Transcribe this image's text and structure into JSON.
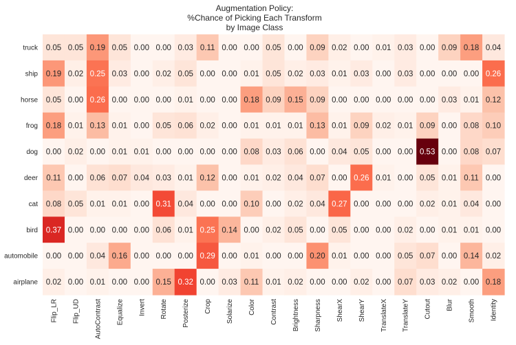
{
  "chart_data": {
    "type": "heatmap",
    "title": [
      "Augmentation Policy:",
      "%Chance of Picking Each Transform",
      "by Image Class"
    ],
    "rows": [
      "truck",
      "ship",
      "horse",
      "frog",
      "dog",
      "deer",
      "cat",
      "bird",
      "automobile",
      "airplane"
    ],
    "columns": [
      "Flip_LR",
      "Flip_UD",
      "AutoContrast",
      "Equalize",
      "Invert",
      "Rotate",
      "Posterize",
      "Crop",
      "Solarize",
      "Color",
      "Contrast",
      "Brightness",
      "Sharpness",
      "ShearX",
      "ShearY",
      "TranslateX",
      "TranslateY",
      "Cutout",
      "Blur",
      "Smooth",
      "Identity"
    ],
    "values": [
      [
        0.05,
        0.05,
        0.19,
        0.05,
        0.0,
        0.0,
        0.03,
        0.11,
        0.0,
        0.0,
        0.05,
        0.0,
        0.09,
        0.02,
        0.0,
        0.01,
        0.03,
        0.0,
        0.09,
        0.18,
        0.04
      ],
      [
        0.19,
        0.02,
        0.25,
        0.03,
        0.0,
        0.02,
        0.05,
        0.0,
        0.0,
        0.01,
        0.05,
        0.02,
        0.03,
        0.01,
        0.03,
        0.0,
        0.03,
        0.0,
        0.0,
        0.0,
        0.26
      ],
      [
        0.05,
        0.0,
        0.26,
        0.0,
        0.0,
        0.0,
        0.01,
        0.0,
        0.0,
        0.18,
        0.09,
        0.15,
        0.09,
        0.0,
        0.0,
        0.0,
        0.0,
        0.0,
        0.03,
        0.01,
        0.12
      ],
      [
        0.18,
        0.01,
        0.13,
        0.01,
        0.0,
        0.05,
        0.06,
        0.02,
        0.0,
        0.01,
        0.01,
        0.01,
        0.13,
        0.01,
        0.09,
        0.02,
        0.01,
        0.09,
        0.0,
        0.08,
        0.1
      ],
      [
        0.0,
        0.02,
        0.0,
        0.01,
        0.01,
        0.0,
        0.0,
        0.0,
        0.0,
        0.08,
        0.03,
        0.06,
        0.0,
        0.04,
        0.05,
        0.0,
        0.0,
        0.53,
        0.0,
        0.08,
        0.07
      ],
      [
        0.11,
        0.0,
        0.06,
        0.07,
        0.04,
        0.03,
        0.01,
        0.12,
        0.0,
        0.01,
        0.02,
        0.04,
        0.07,
        0.0,
        0.26,
        0.01,
        0.0,
        0.05,
        0.01,
        0.11,
        0.0
      ],
      [
        0.08,
        0.05,
        0.01,
        0.01,
        0.0,
        0.31,
        0.04,
        0.0,
        0.0,
        0.1,
        0.0,
        0.02,
        0.04,
        0.27,
        0.0,
        0.0,
        0.0,
        0.02,
        0.01,
        0.04,
        0.0
      ],
      [
        0.37,
        0.0,
        0.0,
        0.0,
        0.0,
        0.06,
        0.01,
        0.25,
        0.14,
        0.0,
        0.02,
        0.05,
        0.0,
        0.05,
        0.0,
        0.0,
        0.02,
        0.0,
        0.01,
        0.01,
        0.0
      ],
      [
        0.0,
        0.0,
        0.04,
        0.16,
        0.0,
        0.0,
        0.0,
        0.29,
        0.0,
        0.01,
        0.0,
        0.0,
        0.2,
        0.01,
        0.0,
        0.0,
        0.05,
        0.07,
        0.0,
        0.14,
        0.02
      ],
      [
        0.02,
        0.0,
        0.01,
        0.0,
        0.0,
        0.15,
        0.32,
        0.0,
        0.03,
        0.11,
        0.01,
        0.02,
        0.0,
        0.0,
        0.02,
        0.0,
        0.07,
        0.03,
        0.02,
        0.0,
        0.18
      ]
    ],
    "colormap": "Reds",
    "colorbar": false,
    "grid": false,
    "dark_text_color": "#262626",
    "light_text_color": "#ffffff"
  }
}
